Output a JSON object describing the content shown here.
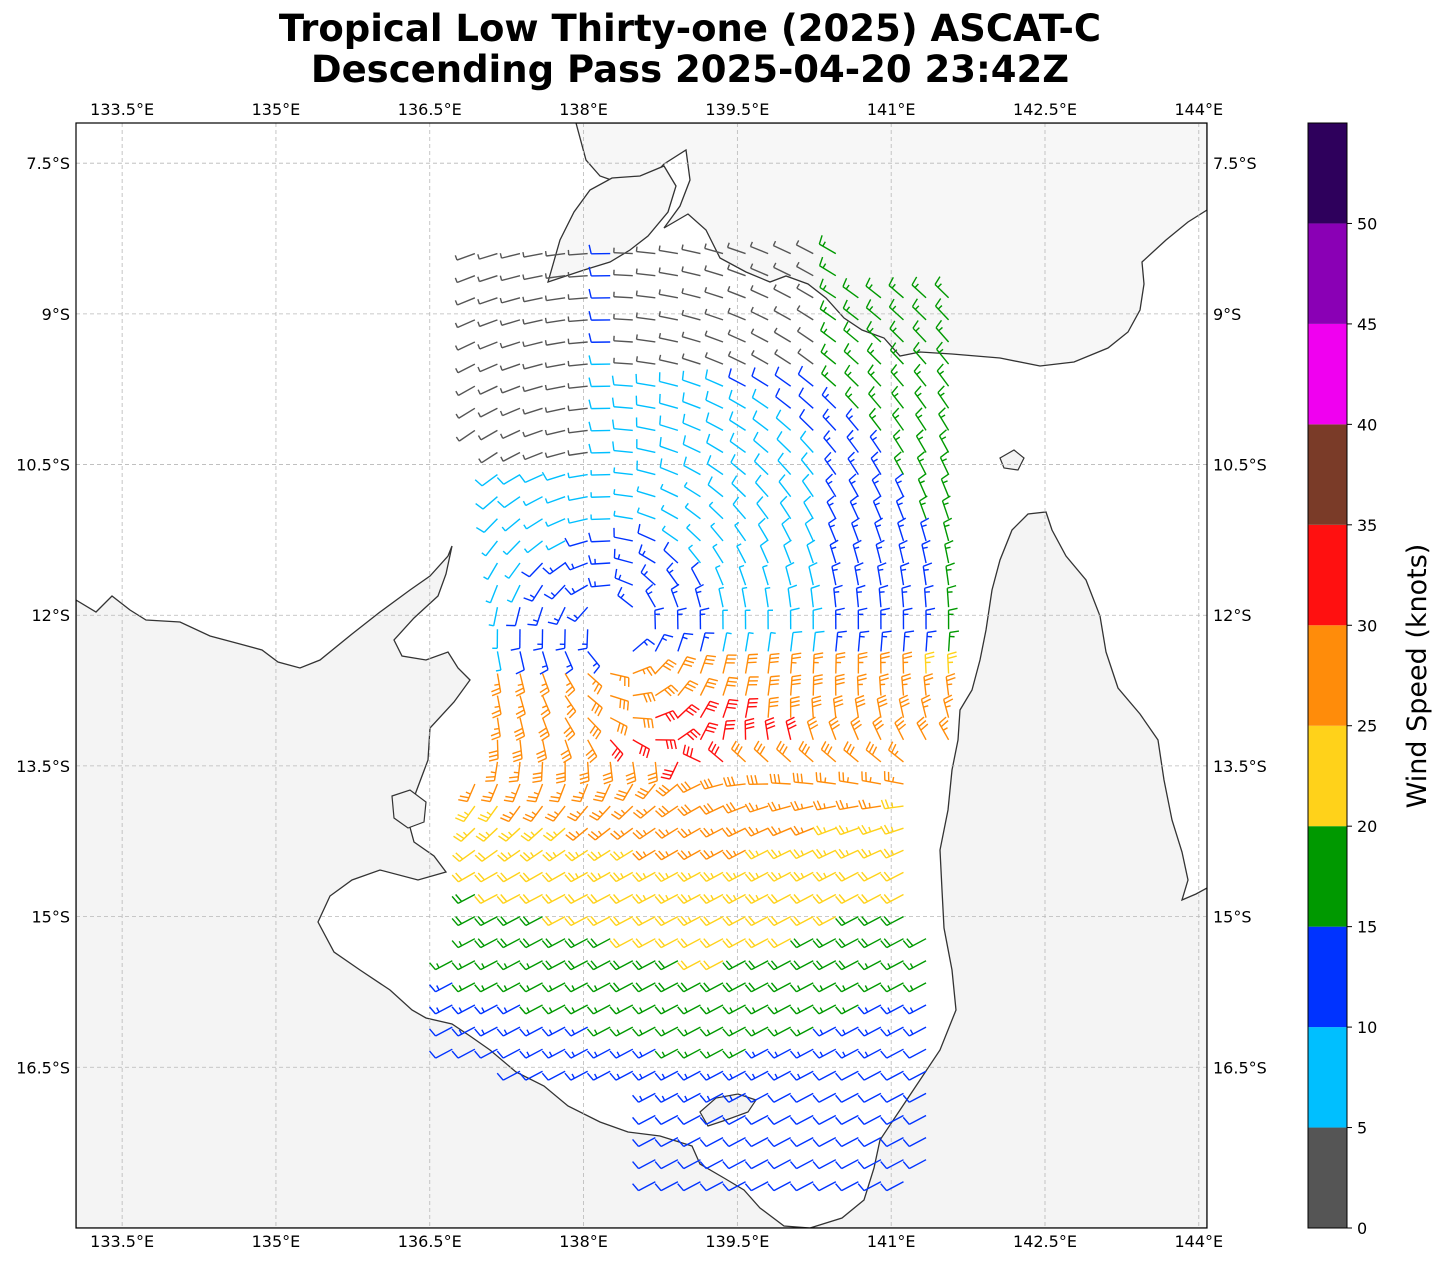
{
  "title": {
    "line1": "Tropical Low Thirty-one (2025) ASCAT-C",
    "line2": "Descending Pass 2025-04-20 23:42Z"
  },
  "map": {
    "lon_range": [
      133.05,
      144.08
    ],
    "lat_range": [
      -18.1,
      -7.1
    ],
    "lon_ticks": [
      "133.5°E",
      "135°E",
      "136.5°E",
      "138°E",
      "139.5°E",
      "141°E",
      "142.5°E",
      "144°E"
    ],
    "lon_tick_values": [
      133.5,
      135,
      136.5,
      138,
      139.5,
      141,
      142.5,
      144
    ],
    "lat_ticks": [
      "7.5°S",
      "9°S",
      "10.5°S",
      "12°S",
      "13.5°S",
      "15°S",
      "16.5°S"
    ],
    "lat_tick_values": [
      -7.5,
      -9,
      -10.5,
      -12,
      -13.5,
      -15,
      -16.5
    ],
    "gridlines": true,
    "land_color": "#f4f4f4",
    "ocean_color": "#ffffff",
    "coast_color": "#333333"
  },
  "colorbar": {
    "label": "Wind Speed (knots)",
    "ticks": [
      "0",
      "5",
      "10",
      "15",
      "20",
      "25",
      "30",
      "35",
      "40",
      "45",
      "50"
    ],
    "bins": [
      {
        "min": 0,
        "max": 5,
        "color": "#555555"
      },
      {
        "min": 5,
        "max": 10,
        "color": "#00bfff"
      },
      {
        "min": 10,
        "max": 15,
        "color": "#0033ff"
      },
      {
        "min": 15,
        "max": 20,
        "color": "#009900"
      },
      {
        "min": 20,
        "max": 25,
        "color": "#ffd21a"
      },
      {
        "min": 25,
        "max": 30,
        "color": "#ff8c0a"
      },
      {
        "min": 30,
        "max": 35,
        "color": "#ff1010"
      },
      {
        "min": 35,
        "max": 40,
        "color": "#7a3b28"
      },
      {
        "min": 40,
        "max": 45,
        "color": "#f000f0"
      },
      {
        "min": 45,
        "max": 50,
        "color": "#8a00b5"
      },
      {
        "min": 50,
        "max": 55,
        "color": "#2e005c"
      }
    ]
  },
  "wind_field": {
    "center": {
      "lon": 138.3,
      "lat": -12.15
    },
    "swath_lon_range": [
      136.5,
      141.7
    ],
    "swath_lat_range": [
      -17.8,
      -8.4
    ],
    "grid_spacing_deg": 0.22,
    "max_wind_kt": 33
  }
}
